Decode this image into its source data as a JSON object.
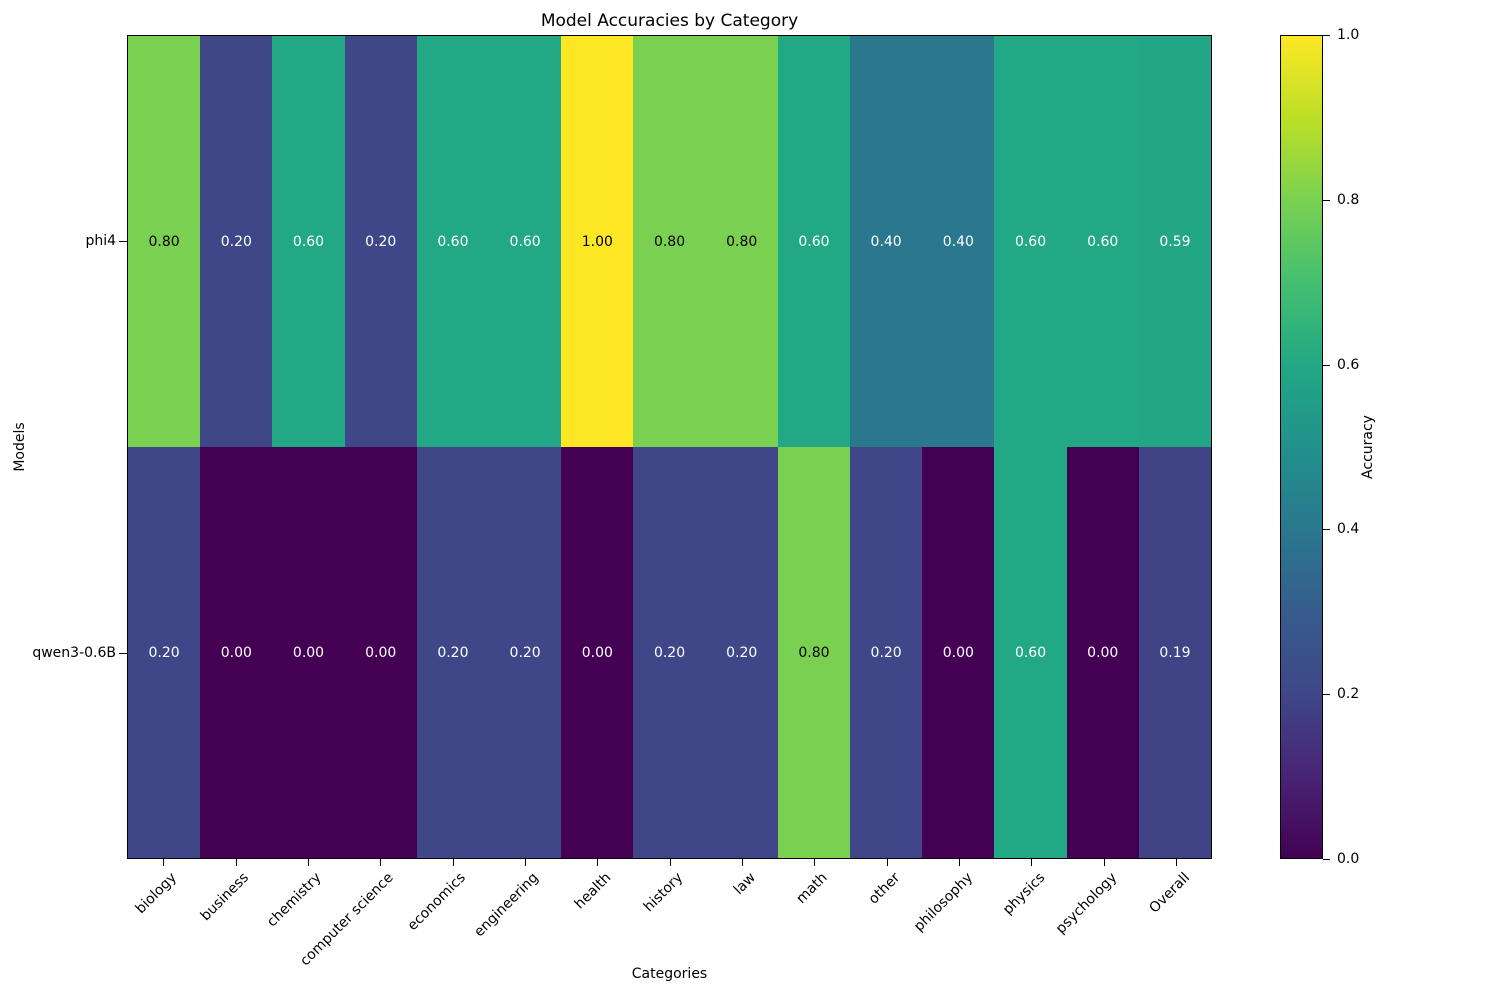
{
  "title": "Model Accuracies by Category",
  "axes": {
    "xlabel": "Categories",
    "ylabel": "Models"
  },
  "colorbar": {
    "label": "Accuracy",
    "tick_values": [
      0.0,
      0.2,
      0.4,
      0.6,
      0.8,
      1.0
    ],
    "tick_labels": [
      "0.0",
      "0.2",
      "0.4",
      "0.6",
      "0.8",
      "1.0"
    ]
  },
  "chart_data": {
    "type": "heatmap",
    "title": "Model Accuracies by Category",
    "xlabel": "Categories",
    "ylabel": "Models",
    "categories": [
      "biology",
      "business",
      "chemistry",
      "computer science",
      "economics",
      "engineering",
      "health",
      "history",
      "law",
      "math",
      "other",
      "philosophy",
      "physics",
      "psychology",
      "Overall"
    ],
    "series": [
      {
        "name": "phi4",
        "values": [
          0.8,
          0.2,
          0.6,
          0.2,
          0.6,
          0.6,
          1.0,
          0.8,
          0.8,
          0.6,
          0.4,
          0.4,
          0.6,
          0.6,
          0.59
        ]
      },
      {
        "name": "qwen3-0.6B",
        "values": [
          0.2,
          0.0,
          0.0,
          0.0,
          0.2,
          0.2,
          0.0,
          0.2,
          0.2,
          0.8,
          0.2,
          0.0,
          0.6,
          0.0,
          0.19
        ]
      }
    ],
    "vmin": 0.0,
    "vmax": 1.0,
    "colormap": "viridis",
    "colorbar_label": "Accuracy",
    "cell_value_decimals": 2,
    "grid": false,
    "legend_position": "right-colorbar",
    "x_tick_rotation_deg": 45
  },
  "colors": {
    "background": "#ffffff",
    "axis": "#000000",
    "annotation_light": "#ffffff",
    "annotation_dark": "#000000",
    "viridis_stops": [
      [
        0.0,
        "#440154"
      ],
      [
        0.1,
        "#482475"
      ],
      [
        0.2,
        "#3f4788"
      ],
      [
        0.3,
        "#365c8d"
      ],
      [
        0.4,
        "#2a788e"
      ],
      [
        0.5,
        "#21918c"
      ],
      [
        0.6,
        "#22a884"
      ],
      [
        0.7,
        "#44bf70"
      ],
      [
        0.8,
        "#7ad151"
      ],
      [
        0.9,
        "#bddf26"
      ],
      [
        1.0,
        "#fde725"
      ]
    ]
  }
}
